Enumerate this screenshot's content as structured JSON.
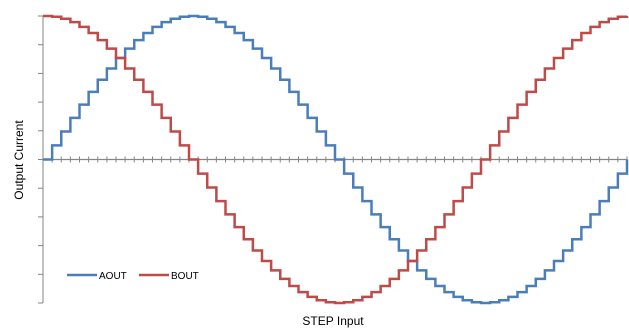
{
  "chart_data": {
    "type": "line",
    "title": "",
    "xlabel": "STEP Input",
    "ylabel": "Output Current",
    "step_count": 64,
    "xlim": [
      0,
      64
    ],
    "ylim": [
      -1,
      1
    ],
    "y_ticks_per_half": 5,
    "x_tick_every": 1,
    "grid": false,
    "legend_position": "bottom-left",
    "series": [
      {
        "name": "AOUT",
        "color": "#4a7ebb",
        "waveform": "sine",
        "line_style": "staircase"
      },
      {
        "name": "BOUT",
        "color": "#be4b48",
        "waveform": "cosine",
        "line_style": "staircase"
      }
    ],
    "axis_color": "#868686"
  }
}
